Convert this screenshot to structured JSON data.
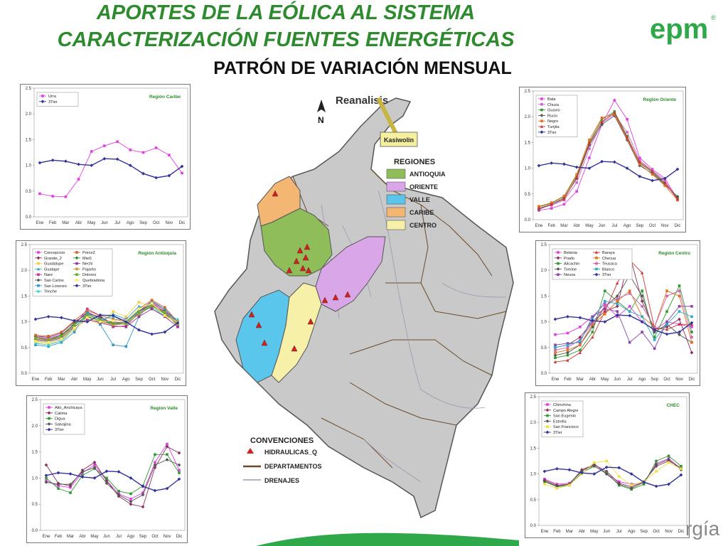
{
  "titles": {
    "line1": "APORTES DE LA EÓLICA AL SISTEMA",
    "line2": "CARACTERIZACIÓN FUENTES ENERGÉTICAS",
    "line3": "PATRÓN DE VARIACIÓN MENSUAL"
  },
  "logo": {
    "text": "epm",
    "mark": "®",
    "color": "#2fa84a"
  },
  "footer": {
    "text": "rgía"
  },
  "map": {
    "brand": "Reanalisis",
    "north": "N",
    "callout": "Kasiwolin",
    "regions_title": "REGIONES",
    "regions": [
      {
        "label": "ANTIOQUIA",
        "color": "#8fbd5a"
      },
      {
        "label": "ORIENTE",
        "color": "#d9a6e8"
      },
      {
        "label": "VALLE",
        "color": "#5bc6ec"
      },
      {
        "label": "CARIBE",
        "color": "#f4b673"
      },
      {
        "label": "CENTRO",
        "color": "#f7f0a8"
      }
    ],
    "conventions_title": "CONVENCIONES",
    "conventions": [
      "HIDRAULICAS_Q",
      "DEPARTAMENTOS",
      "DRENAJES"
    ]
  },
  "chart_data": [
    {
      "id": "caribe",
      "type": "line",
      "title": "Región Caribe",
      "x": [
        "Ene",
        "Feb",
        "Mar",
        "Abr",
        "May",
        "Jun",
        "Jul",
        "Ago",
        "Sep",
        "Oct",
        "Nov",
        "Dic"
      ],
      "yticks": [
        "0.0",
        "0.5",
        "1.0",
        "1.5",
        "2.0",
        "2.5"
      ],
      "ylim": [
        0,
        2.5
      ],
      "legend_cols": 1,
      "series": [
        {
          "name": "Urra",
          "color": "#e040e0",
          "marker": "square",
          "values": [
            0.45,
            0.4,
            0.39,
            0.73,
            1.27,
            1.38,
            1.46,
            1.3,
            1.25,
            1.34,
            1.2,
            0.85
          ]
        },
        {
          "name": "3Tier",
          "color": "#333399",
          "marker": "diamond",
          "values": [
            1.05,
            1.1,
            1.08,
            1.02,
            1.0,
            1.13,
            1.12,
            1.0,
            0.84,
            0.76,
            0.8,
            0.98
          ]
        }
      ]
    },
    {
      "id": "oriente",
      "type": "line",
      "title": "Región Oriente",
      "x": [
        "Ene",
        "Feb",
        "Mar",
        "Abr",
        "May",
        "Jun",
        "Jul",
        "Ago",
        "Sep",
        "Oct",
        "Nov",
        "Dic"
      ],
      "yticks": [
        "0.0",
        "0.5",
        "1.0",
        "1.5",
        "2.0",
        "2.5"
      ],
      "ylim": [
        0,
        2.5
      ],
      "legend_cols": 1,
      "series": [
        {
          "name": "Bata",
          "color": "#e040e0",
          "marker": "square",
          "values": [
            0.18,
            0.22,
            0.3,
            0.55,
            1.2,
            1.85,
            2.32,
            1.95,
            1.2,
            0.98,
            0.8,
            0.4
          ]
        },
        {
          "name": "Chuza",
          "color": "#cc66cc",
          "marker": "square",
          "values": [
            0.22,
            0.28,
            0.38,
            0.72,
            1.38,
            1.88,
            2.05,
            1.7,
            1.15,
            0.95,
            0.76,
            0.38
          ]
        },
        {
          "name": "Guavio",
          "color": "#339933",
          "marker": "square",
          "values": [
            0.25,
            0.32,
            0.45,
            0.85,
            1.5,
            1.95,
            2.1,
            1.62,
            1.1,
            0.92,
            0.7,
            0.42
          ]
        },
        {
          "name": "Rucio",
          "color": "#555555",
          "marker": "diamond",
          "values": [
            0.2,
            0.3,
            0.42,
            0.8,
            1.45,
            1.85,
            2.02,
            1.55,
            1.05,
            0.9,
            0.68,
            0.45
          ]
        },
        {
          "name": "Negro",
          "color": "#e87020",
          "marker": "square",
          "values": [
            0.26,
            0.33,
            0.46,
            0.88,
            1.55,
            1.98,
            2.05,
            1.58,
            1.08,
            0.88,
            0.66,
            0.38
          ]
        },
        {
          "name": "Tunjita",
          "color": "#cc3333",
          "marker": "triangle",
          "values": [
            0.22,
            0.3,
            0.4,
            0.82,
            1.48,
            1.9,
            2.08,
            1.6,
            1.12,
            0.94,
            0.72,
            0.4
          ]
        },
        {
          "name": "3Tier",
          "color": "#333399",
          "marker": "diamond",
          "values": [
            1.05,
            1.1,
            1.08,
            1.02,
            1.0,
            1.13,
            1.12,
            1.0,
            0.84,
            0.76,
            0.8,
            0.98
          ]
        }
      ]
    },
    {
      "id": "antioquia",
      "type": "line",
      "title": "Región Antioquia",
      "x": [
        "Ene",
        "Feb",
        "Mar",
        "Abr",
        "May",
        "Jun",
        "Jul",
        "Ago",
        "Sep",
        "Oct",
        "Nov",
        "Dic"
      ],
      "yticks": [
        "0.0",
        "0.5",
        "1.0",
        "1.5",
        "2.0",
        "2.5"
      ],
      "ylim": [
        0,
        2.5
      ],
      "legend_cols": 2,
      "series": [
        {
          "name": "Concepcion",
          "color": "#e040e0",
          "marker": "square",
          "values": [
            0.7,
            0.68,
            0.75,
            0.95,
            1.2,
            1.05,
            1.0,
            1.05,
            1.15,
            1.35,
            1.2,
            0.98
          ]
        },
        {
          "name": "Grande_2",
          "color": "#8a3060",
          "marker": "diamond",
          "values": [
            0.72,
            0.7,
            0.78,
            1.0,
            1.15,
            1.1,
            0.95,
            0.98,
            1.2,
            1.4,
            1.22,
            1.0
          ]
        },
        {
          "name": "Guadalupe",
          "color": "#f0d040",
          "marker": "square",
          "values": [
            0.6,
            0.58,
            0.62,
            0.85,
            1.05,
            0.95,
            1.2,
            1.1,
            1.38,
            1.3,
            1.1,
            0.98
          ]
        },
        {
          "name": "Guatape",
          "color": "#33aacc",
          "marker": "triangle",
          "values": [
            0.62,
            0.6,
            0.65,
            0.9,
            1.1,
            0.98,
            1.15,
            1.05,
            1.3,
            1.25,
            1.12,
            1.02
          ]
        },
        {
          "name": "Nare",
          "color": "#cc3399",
          "marker": "square",
          "values": [
            0.68,
            0.65,
            0.72,
            0.92,
            1.25,
            1.12,
            0.9,
            0.92,
            1.18,
            1.38,
            1.18,
            0.95
          ]
        },
        {
          "name": "San Carlos",
          "color": "#555555",
          "marker": "diamond",
          "values": [
            0.66,
            0.64,
            0.7,
            0.98,
            1.18,
            1.08,
            0.98,
            1.0,
            1.22,
            1.32,
            1.15,
            0.96
          ]
        },
        {
          "name": "San Lorenzo",
          "color": "#3399cc",
          "marker": "square",
          "values": [
            0.55,
            0.52,
            0.6,
            0.8,
            1.2,
            0.95,
            0.55,
            0.52,
            1.1,
            1.4,
            1.25,
            1.0
          ]
        },
        {
          "name": "Tenche",
          "color": "#33cccc",
          "marker": "triangle",
          "values": [
            0.58,
            0.55,
            0.63,
            0.88,
            1.15,
            1.05,
            1.1,
            1.0,
            1.2,
            1.28,
            1.15,
            1.05
          ]
        },
        {
          "name": "Porce2",
          "color": "#cc6633",
          "marker": "square",
          "values": [
            0.74,
            0.72,
            0.8,
            1.02,
            1.22,
            1.12,
            1.05,
            1.02,
            1.25,
            1.42,
            1.28,
            1.0
          ]
        },
        {
          "name": "Miel1",
          "color": "#338833",
          "marker": "diamond",
          "values": [
            0.7,
            0.66,
            0.74,
            0.96,
            1.1,
            1.02,
            0.96,
            0.95,
            1.15,
            1.3,
            1.2,
            0.92
          ]
        },
        {
          "name": "Nechi",
          "color": "#993399",
          "marker": "square",
          "values": [
            0.64,
            0.62,
            0.68,
            0.9,
            1.05,
            0.98,
            0.92,
            0.9,
            1.1,
            1.25,
            1.1,
            0.9
          ]
        },
        {
          "name": "Pajarito",
          "color": "#cc9933",
          "marker": "square",
          "values": [
            0.68,
            0.66,
            0.7,
            0.94,
            1.12,
            1.0,
            0.94,
            0.96,
            1.15,
            1.32,
            1.18,
            0.95
          ]
        },
        {
          "name": "Dolores",
          "color": "#66aa33",
          "marker": "square",
          "values": [
            0.66,
            0.64,
            0.72,
            0.93,
            1.14,
            1.04,
            0.97,
            0.98,
            1.18,
            1.34,
            1.16,
            0.97
          ]
        },
        {
          "name": "Quebradona",
          "color": "#ffee66",
          "marker": "square",
          "values": [
            0.62,
            0.6,
            0.66,
            0.88,
            1.08,
            1.0,
            1.02,
            1.02,
            1.25,
            1.36,
            1.12,
            0.99
          ]
        },
        {
          "name": "3Tier",
          "color": "#333399",
          "marker": "diamond",
          "values": [
            1.05,
            1.1,
            1.08,
            1.02,
            1.0,
            1.13,
            1.12,
            1.0,
            0.84,
            0.76,
            0.8,
            0.98
          ]
        }
      ]
    },
    {
      "id": "centro",
      "type": "line",
      "title": "Región Centro",
      "x": [
        "Ene",
        "Feb",
        "Mar",
        "Abr",
        "May",
        "Jun",
        "Jul",
        "Ago",
        "Sep",
        "Oct",
        "Nov",
        "Dic"
      ],
      "yticks": [
        "0.0",
        "0.5",
        "1.0",
        "1.5",
        "2.0",
        "2.5"
      ],
      "ylim": [
        0,
        2.5
      ],
      "legend_cols": 2,
      "series": [
        {
          "name": "Betania",
          "color": "#e040e0",
          "marker": "square",
          "values": [
            0.75,
            0.78,
            0.9,
            1.1,
            1.35,
            1.1,
            1.3,
            1.0,
            0.85,
            1.0,
            0.95,
            0.9
          ]
        },
        {
          "name": "Prado",
          "color": "#8a3060",
          "marker": "diamond",
          "values": [
            0.5,
            0.55,
            0.7,
            1.0,
            1.2,
            1.3,
            2.3,
            1.4,
            0.85,
            0.9,
            1.05,
            0.4
          ]
        },
        {
          "name": "Alicachin",
          "color": "#339933",
          "marker": "square",
          "values": [
            0.3,
            0.35,
            0.45,
            0.8,
            1.6,
            1.4,
            1.2,
            1.6,
            0.7,
            1.2,
            1.7,
            0.8
          ]
        },
        {
          "name": "Tomine",
          "color": "#555555",
          "marker": "diamond",
          "values": [
            0.35,
            0.4,
            0.55,
            0.9,
            1.3,
            1.5,
            1.9,
            1.5,
            0.8,
            0.95,
            0.75,
            0.6
          ]
        },
        {
          "name": "Neusa",
          "color": "#8844aa",
          "marker": "square",
          "values": [
            0.55,
            0.58,
            0.6,
            1.1,
            1.25,
            1.2,
            0.6,
            0.8,
            0.48,
            1.0,
            1.3,
            1.3
          ]
        },
        {
          "name": "Baraya",
          "color": "#cc3333",
          "marker": "triangle",
          "values": [
            0.22,
            0.25,
            0.4,
            0.7,
            1.2,
            1.75,
            2.2,
            1.95,
            0.88,
            0.85,
            0.95,
            0.95
          ]
        },
        {
          "name": "Checua",
          "color": "#e87020",
          "marker": "square",
          "values": [
            0.4,
            0.45,
            0.55,
            0.95,
            1.15,
            1.4,
            1.6,
            1.1,
            0.9,
            1.6,
            1.5,
            0.6
          ]
        },
        {
          "name": "Teusaca",
          "color": "#cc66aa",
          "marker": "square",
          "values": [
            0.45,
            0.5,
            0.65,
            0.98,
            1.3,
            1.45,
            1.55,
            1.3,
            0.9,
            1.5,
            1.6,
            0.7
          ]
        },
        {
          "name": "Blanco",
          "color": "#33aacc",
          "marker": "square",
          "values": [
            0.5,
            0.55,
            0.62,
            1.05,
            1.4,
            1.35,
            1.2,
            1.1,
            0.65,
            0.95,
            1.2,
            1.1
          ]
        },
        {
          "name": "3Tier",
          "color": "#333399",
          "marker": "diamond",
          "values": [
            1.05,
            1.1,
            1.08,
            1.02,
            1.0,
            1.13,
            1.12,
            1.0,
            0.84,
            0.76,
            0.8,
            0.98
          ]
        }
      ]
    },
    {
      "id": "valle",
      "type": "line",
      "title": "Región Valle",
      "x": [
        "Ene",
        "Feb",
        "Mar",
        "Abr",
        "May",
        "Jun",
        "Jul",
        "Ago",
        "Sep",
        "Oct",
        "Nov",
        "Dic"
      ],
      "yticks": [
        "0.0",
        "0.5",
        "1.0",
        "1.5",
        "2.0",
        "2.5"
      ],
      "ylim": [
        0,
        2.5
      ],
      "legend_cols": 1,
      "series": [
        {
          "name": "Alto_Anchicaya",
          "color": "#e040e0",
          "marker": "square",
          "values": [
            0.95,
            0.85,
            0.82,
            1.1,
            1.25,
            0.95,
            0.7,
            0.6,
            0.72,
            1.3,
            1.65,
            1.15
          ]
        },
        {
          "name": "Calima",
          "color": "#8a3060",
          "marker": "diamond",
          "values": [
            1.25,
            0.9,
            0.85,
            1.15,
            1.3,
            0.95,
            0.65,
            0.5,
            0.45,
            1.2,
            1.6,
            1.48
          ]
        },
        {
          "name": "Digua",
          "color": "#339933",
          "marker": "square",
          "values": [
            1.0,
            0.8,
            0.72,
            1.05,
            1.18,
            1.0,
            0.75,
            0.7,
            0.85,
            1.45,
            1.45,
            1.1
          ]
        },
        {
          "name": "Salvajina",
          "color": "#555555",
          "marker": "diamond",
          "values": [
            0.92,
            0.88,
            0.88,
            1.12,
            1.2,
            0.9,
            0.68,
            0.55,
            0.68,
            1.25,
            1.35,
            1.25
          ]
        },
        {
          "name": "3Tier",
          "color": "#333399",
          "marker": "diamond",
          "values": [
            1.05,
            1.1,
            1.08,
            1.02,
            1.0,
            1.13,
            1.12,
            1.0,
            0.84,
            0.76,
            0.8,
            0.98
          ]
        }
      ]
    },
    {
      "id": "chec",
      "type": "line",
      "title": "CHEC",
      "x": [
        "Ene",
        "Feb",
        "Mar",
        "Abr",
        "May",
        "Jun",
        "Jul",
        "Ago",
        "Sep",
        "Oct",
        "Nov",
        "Dic"
      ],
      "yticks": [
        "0.0",
        "0.5",
        "1.0",
        "1.5",
        "2.0",
        "2.5"
      ],
      "ylim": [
        0,
        2.5
      ],
      "legend_cols": 1,
      "series": [
        {
          "name": "Chinchina",
          "color": "#e040e0",
          "marker": "square",
          "values": [
            0.9,
            0.8,
            0.82,
            1.05,
            1.2,
            1.0,
            0.85,
            0.8,
            0.82,
            1.2,
            1.3,
            1.1
          ]
        },
        {
          "name": "Campo Alegre",
          "color": "#8a3060",
          "marker": "diamond",
          "values": [
            0.88,
            0.78,
            0.8,
            1.08,
            1.18,
            1.05,
            0.82,
            0.75,
            0.85,
            1.15,
            1.25,
            1.12
          ]
        },
        {
          "name": "San Eugenio",
          "color": "#339933",
          "marker": "square",
          "values": [
            0.85,
            0.75,
            0.78,
            1.02,
            1.15,
            1.02,
            0.78,
            0.7,
            0.8,
            1.25,
            1.35,
            1.15
          ]
        },
        {
          "name": "Estrella",
          "color": "#555555",
          "marker": "diamond",
          "values": [
            0.86,
            0.76,
            0.8,
            1.06,
            1.16,
            1.0,
            0.8,
            0.72,
            0.84,
            1.18,
            1.28,
            1.08
          ]
        },
        {
          "name": "San Francisco",
          "color": "#f0e040",
          "marker": "square",
          "values": [
            0.8,
            0.72,
            0.78,
            1.0,
            1.22,
            1.25,
            0.95,
            0.78,
            0.85,
            1.05,
            1.22,
            1.1
          ]
        },
        {
          "name": "3Tier",
          "color": "#333399",
          "marker": "diamond",
          "values": [
            1.05,
            1.1,
            1.08,
            1.02,
            1.0,
            1.13,
            1.12,
            1.0,
            0.84,
            0.76,
            0.8,
            0.98
          ]
        }
      ]
    }
  ]
}
